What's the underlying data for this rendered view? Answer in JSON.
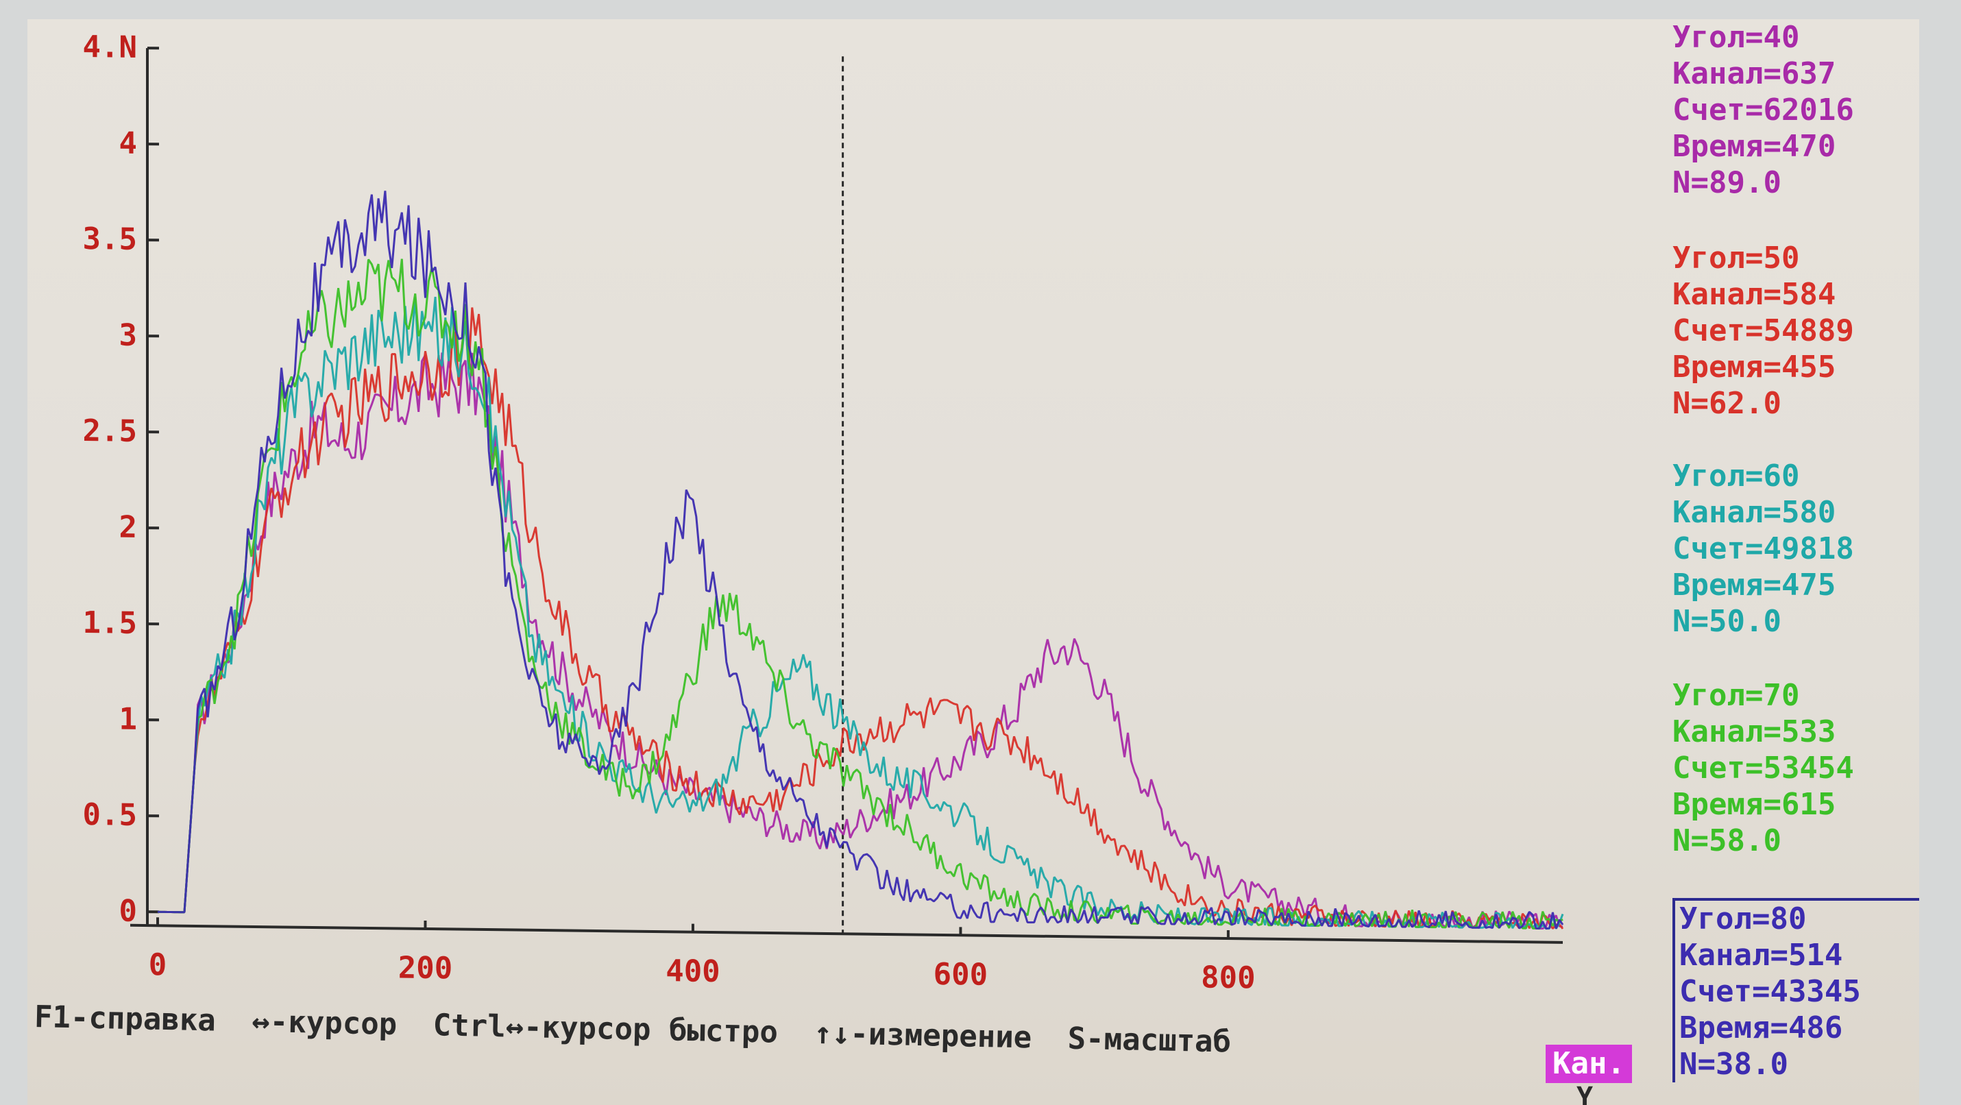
{
  "colors": {
    "axis": "#2a2a2a",
    "tick_label": "#c0201c",
    "cursor": "#2a2a2a",
    "series": [
      "#a82aa8",
      "#d8322a",
      "#1fa8a8",
      "#3cc028",
      "#3c2cb0"
    ]
  },
  "chart_data": {
    "type": "line",
    "title": "",
    "xlabel": "",
    "ylabel": "",
    "xlim": [
      0,
      1050
    ],
    "ylim": [
      0,
      4.5
    ],
    "x_ticks": [
      0,
      200,
      400,
      600,
      800
    ],
    "x_tick_labels": [
      "0",
      "200",
      "400",
      "600",
      "800"
    ],
    "y_ticks": [
      0,
      0.5,
      1,
      1.5,
      2,
      2.5,
      3,
      3.5,
      4,
      4.5
    ],
    "y_tick_labels": [
      "0",
      "0.5",
      "1",
      "1.5",
      "2",
      "2.5",
      "3",
      "3.5",
      "4",
      "4.N"
    ],
    "cursor_x": 512,
    "grid": false,
    "x": [
      0,
      20,
      30,
      40,
      60,
      80,
      100,
      120,
      140,
      160,
      180,
      200,
      220,
      240,
      260,
      280,
      300,
      320,
      340,
      360,
      380,
      400,
      420,
      440,
      460,
      480,
      500,
      520,
      540,
      560,
      580,
      600,
      620,
      640,
      660,
      680,
      700,
      720,
      740,
      760,
      780,
      800,
      850,
      900,
      950,
      1000,
      1050
    ],
    "series": [
      {
        "values": [
          0,
          0,
          1.0,
          1.15,
          1.5,
          2.1,
          2.35,
          2.55,
          2.45,
          2.55,
          2.65,
          2.75,
          2.78,
          2.75,
          2.2,
          1.6,
          1.3,
          1.1,
          0.95,
          0.82,
          0.72,
          0.65,
          0.6,
          0.55,
          0.5,
          0.45,
          0.42,
          0.5,
          0.58,
          0.65,
          0.75,
          0.85,
          0.95,
          1.1,
          1.35,
          1.45,
          1.3,
          1.0,
          0.7,
          0.5,
          0.32,
          0.2,
          0.1,
          0.05,
          0.03,
          0.03,
          0.03
        ]
      },
      {
        "values": [
          0,
          0,
          1.0,
          1.1,
          1.45,
          2.0,
          2.3,
          2.5,
          2.6,
          2.7,
          2.8,
          2.85,
          2.9,
          3.0,
          2.6,
          2.0,
          1.55,
          1.25,
          1.05,
          0.9,
          0.78,
          0.7,
          0.64,
          0.6,
          0.62,
          0.72,
          0.85,
          0.95,
          1.0,
          1.05,
          1.08,
          1.05,
          1.0,
          0.95,
          0.85,
          0.7,
          0.55,
          0.4,
          0.28,
          0.18,
          0.12,
          0.08,
          0.05,
          0.03,
          0.03,
          0.03,
          0.03
        ]
      },
      {
        "values": [
          0,
          0,
          1.0,
          1.15,
          1.5,
          2.2,
          2.6,
          2.8,
          2.9,
          3.0,
          3.05,
          3.05,
          3.0,
          2.9,
          2.2,
          1.45,
          1.15,
          0.95,
          0.8,
          0.68,
          0.6,
          0.58,
          0.68,
          0.95,
          1.15,
          1.32,
          1.15,
          0.95,
          0.8,
          0.72,
          0.65,
          0.55,
          0.42,
          0.32,
          0.22,
          0.15,
          0.1,
          0.07,
          0.05,
          0.04,
          0.03,
          0.03,
          0.03,
          0.03,
          0.03,
          0.03,
          0.03
        ]
      },
      {
        "values": [
          0,
          0,
          1.0,
          1.15,
          1.55,
          2.3,
          2.8,
          3.05,
          3.15,
          3.25,
          3.25,
          3.2,
          3.1,
          2.95,
          2.0,
          1.3,
          1.05,
          0.85,
          0.72,
          0.7,
          0.9,
          1.3,
          1.65,
          1.55,
          1.25,
          1.0,
          0.85,
          0.72,
          0.6,
          0.48,
          0.36,
          0.25,
          0.17,
          0.11,
          0.08,
          0.06,
          0.05,
          0.04,
          0.03,
          0.03,
          0.03,
          0.03,
          0.03,
          0.03,
          0.03,
          0.03,
          0.03
        ]
      },
      {
        "values": [
          0,
          0,
          1.0,
          1.15,
          1.6,
          2.4,
          2.9,
          3.25,
          3.45,
          3.6,
          3.55,
          3.4,
          3.25,
          3.0,
          1.8,
          1.2,
          0.95,
          0.8,
          0.85,
          1.3,
          1.9,
          2.15,
          1.55,
          1.05,
          0.8,
          0.6,
          0.45,
          0.33,
          0.22,
          0.15,
          0.1,
          0.07,
          0.05,
          0.04,
          0.03,
          0.03,
          0.03,
          0.03,
          0.03,
          0.03,
          0.03,
          0.03,
          0.03,
          0.03,
          0.03,
          0.03,
          0.03
        ]
      }
    ]
  },
  "info_panels": [
    {
      "color": "#a82aa8",
      "lines": [
        "Угол=40",
        "Канал=637",
        "Счет=62016",
        "Время=470",
        "N=89.0"
      ]
    },
    {
      "color": "#d8322a",
      "lines": [
        "Угол=50",
        "Канал=584",
        "Счет=54889",
        "Время=455",
        "N=62.0"
      ]
    },
    {
      "color": "#1fa8a8",
      "lines": [
        "Угол=60",
        "Канал=580",
        "Счет=49818",
        "Время=475",
        "N=50.0"
      ]
    },
    {
      "color": "#3cc028",
      "lines": [
        "Угол=70",
        "Канал=533",
        "Счет=53454",
        "Время=615",
        "N=58.0"
      ]
    },
    {
      "color": "#3c2cb0",
      "lines": [
        "Угол=80",
        "Канал=514",
        "Счет=43345",
        "Время=486",
        "N=38.0"
      ]
    }
  ],
  "footer": {
    "help": "F1-справка",
    "cursor": "↔-курсор",
    "fast_cursor": "Ctrl↔-курсор быстро",
    "measure": "↑↓-измерение",
    "scale": "S-масштаб",
    "axis_hint": "Y",
    "mode": "Кан."
  }
}
